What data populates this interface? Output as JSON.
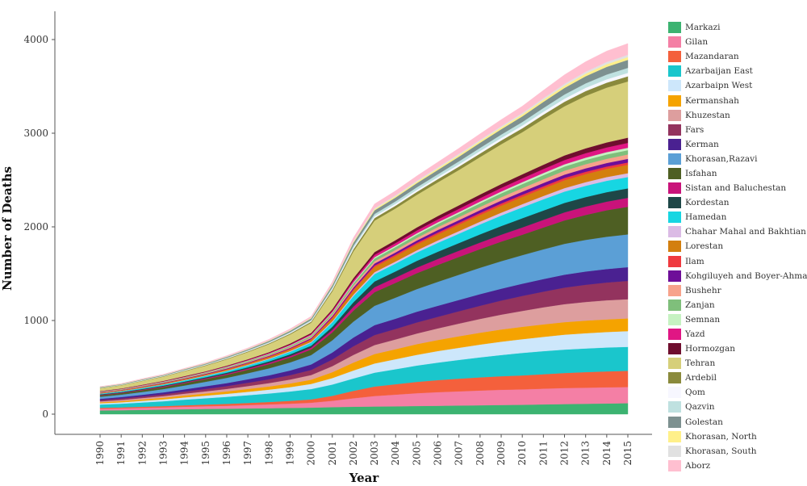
{
  "chart_data": {
    "type": "area",
    "stacked": true,
    "xlabel": "Year",
    "ylabel": "Number of Deaths",
    "xlim": [
      1990,
      2015
    ],
    "ylim": [
      0,
      4000
    ],
    "yticks": [
      0,
      1000,
      2000,
      3000,
      4000
    ],
    "x": [
      1990,
      1991,
      1992,
      1993,
      1994,
      1995,
      1996,
      1997,
      1998,
      1999,
      2000,
      2001,
      2002,
      2003,
      2004,
      2005,
      2006,
      2007,
      2008,
      2009,
      2010,
      2011,
      2012,
      2013,
      2014,
      2015
    ],
    "legend_position": "right",
    "grid": false,
    "series": [
      {
        "name": "Markazi",
        "color": "#3cb371",
        "values": [
          40,
          42,
          46,
          49,
          53,
          56,
          58,
          61,
          64,
          67,
          70,
          75,
          79,
          82,
          84,
          87,
          90,
          92,
          95,
          98,
          100,
          104,
          108,
          111,
          114,
          117
        ]
      },
      {
        "name": "Gilan",
        "color": "#f47fa5",
        "values": [
          18,
          19,
          21,
          23,
          26,
          29,
          32,
          36,
          40,
          45,
          52,
          68,
          91,
          112,
          125,
          137,
          145,
          152,
          158,
          162,
          165,
          168,
          171,
          172,
          173,
          173
        ]
      },
      {
        "name": "Mazandaran",
        "color": "#f4603c",
        "values": [
          10,
          11,
          12,
          14,
          16,
          18,
          20,
          23,
          26,
          30,
          36,
          53,
          79,
          101,
          111,
          121,
          129,
          135,
          140,
          145,
          149,
          155,
          161,
          166,
          170,
          173
        ]
      },
      {
        "name": "Azarbaijan East",
        "color": "#1ac6cc",
        "values": [
          35,
          40,
          46,
          52,
          60,
          67,
          75,
          83,
          91,
          100,
          110,
          120,
          132,
          148,
          160,
          174,
          187,
          200,
          214,
          227,
          240,
          246,
          250,
          253,
          255,
          256
        ]
      },
      {
        "name": "Azarbaipn West",
        "color": "#cde7fb",
        "values": [
          13,
          15,
          18,
          21,
          24,
          28,
          32,
          36,
          41,
          47,
          55,
          69,
          85,
          98,
          107,
          115,
          123,
          130,
          136,
          142,
          147,
          153,
          159,
          163,
          166,
          168
        ]
      },
      {
        "name": "Kermanshah",
        "color": "#f5a300",
        "values": [
          11,
          13,
          15,
          17,
          20,
          23,
          26,
          30,
          34,
          39,
          45,
          63,
          85,
          101,
          107,
          113,
          118,
          123,
          127,
          130,
          132,
          133,
          134,
          134,
          134,
          135
        ]
      },
      {
        "name": "Khuzestan",
        "color": "#dd9e9e",
        "values": [
          10,
          12,
          14,
          17,
          20,
          23,
          27,
          31,
          36,
          42,
          50,
          65,
          82,
          96,
          104,
          114,
          124,
          135,
          147,
          159,
          170,
          182,
          192,
          199,
          204,
          206
        ]
      },
      {
        "name": "Fars",
        "color": "#93335e",
        "values": [
          13,
          15,
          17,
          19,
          22,
          26,
          30,
          35,
          40,
          46,
          54,
          71,
          92,
          107,
          112,
          118,
          124,
          132,
          141,
          150,
          160,
          168,
          177,
          184,
          190,
          195
        ]
      },
      {
        "name": "Kerman",
        "color": "#4a2191",
        "values": [
          14,
          16,
          18,
          21,
          24,
          28,
          32,
          37,
          43,
          50,
          59,
          75,
          93,
          106,
          110,
          115,
          118,
          121,
          124,
          127,
          130,
          134,
          138,
          141,
          144,
          147
        ]
      },
      {
        "name": "Khorasan,Razavi",
        "color": "#5b9fd6",
        "values": [
          22,
          26,
          30,
          35,
          41,
          48,
          56,
          65,
          75,
          87,
          100,
          130,
          170,
          206,
          225,
          241,
          256,
          269,
          282,
          294,
          305,
          317,
          329,
          338,
          345,
          350
        ]
      },
      {
        "name": "Isfahan",
        "color": "#4e5f23",
        "values": [
          14,
          16,
          19,
          22,
          25,
          29,
          33,
          38,
          44,
          51,
          60,
          84,
          117,
          146,
          158,
          170,
          180,
          190,
          199,
          208,
          218,
          233,
          250,
          267,
          283,
          295
        ]
      },
      {
        "name": "Sistan and Baluchestan",
        "color": "#c9137a",
        "values": [
          5,
          5,
          6,
          7,
          8,
          9,
          10,
          12,
          14,
          16,
          19,
          28,
          42,
          53,
          56,
          60,
          64,
          67,
          70,
          74,
          78,
          82,
          86,
          89,
          92,
          95
        ]
      },
      {
        "name": "Kordestan",
        "color": "#1e4747",
        "values": [
          6,
          6,
          7,
          8,
          9,
          10,
          12,
          14,
          16,
          19,
          22,
          33,
          48,
          61,
          66,
          72,
          77,
          82,
          88,
          93,
          98,
          100,
          101,
          101,
          101,
          101
        ]
      },
      {
        "name": "Hamedan",
        "color": "#17d6e2",
        "values": [
          8,
          9,
          10,
          11,
          13,
          15,
          17,
          20,
          23,
          27,
          32,
          46,
          65,
          79,
          84,
          89,
          95,
          100,
          106,
          112,
          117,
          120,
          121,
          121,
          121,
          121
        ]
      },
      {
        "name": "Chahar Mahal and Bakhtian",
        "color": "#dbbbe5",
        "values": [
          2,
          2,
          3,
          3,
          4,
          4,
          5,
          6,
          7,
          8,
          9,
          12,
          16,
          20,
          21,
          23,
          25,
          27,
          29,
          31,
          33,
          35,
          37,
          39,
          40,
          41
        ]
      },
      {
        "name": "Lorestan",
        "color": "#d37f0f",
        "values": [
          6,
          7,
          8,
          9,
          10,
          11,
          13,
          15,
          17,
          20,
          23,
          32,
          45,
          55,
          58,
          62,
          66,
          69,
          72,
          75,
          78,
          81,
          84,
          86,
          88,
          90
        ]
      },
      {
        "name": "Ilam",
        "color": "#ef3a3f",
        "values": [
          2,
          2,
          2,
          3,
          3,
          3,
          4,
          4,
          5,
          6,
          7,
          10,
          13,
          16,
          17,
          18,
          19,
          20,
          21,
          22,
          23,
          23,
          24,
          24,
          24,
          25
        ]
      },
      {
        "name": "Kohgiluyeh and Boyer-Ahmad",
        "color": "#6e0e99",
        "values": [
          3,
          3,
          3,
          4,
          4,
          5,
          6,
          6,
          7,
          8,
          10,
          13,
          18,
          22,
          23,
          25,
          27,
          28,
          30,
          32,
          33,
          35,
          36,
          37,
          38,
          39
        ]
      },
      {
        "name": "Bushehr",
        "color": "#f7a28b",
        "values": [
          3,
          3,
          4,
          4,
          5,
          5,
          6,
          7,
          8,
          9,
          11,
          15,
          20,
          24,
          26,
          28,
          30,
          32,
          34,
          36,
          38,
          40,
          42,
          44,
          45,
          46
        ]
      },
      {
        "name": "Zanjan",
        "color": "#7fbf7b",
        "values": [
          4,
          4,
          5,
          5,
          6,
          7,
          8,
          9,
          10,
          12,
          14,
          18,
          24,
          29,
          31,
          33,
          35,
          37,
          39,
          41,
          43,
          44,
          45,
          46,
          46,
          46
        ]
      },
      {
        "name": "Semnan",
        "color": "#c6f2c2",
        "values": [
          2,
          2,
          2,
          3,
          3,
          3,
          4,
          4,
          5,
          6,
          7,
          9,
          12,
          14,
          15,
          16,
          17,
          18,
          19,
          20,
          21,
          22,
          23,
          24,
          25,
          26
        ]
      },
      {
        "name": "Yazd",
        "color": "#e01684",
        "values": [
          3,
          3,
          4,
          4,
          5,
          5,
          6,
          7,
          8,
          9,
          11,
          15,
          21,
          26,
          28,
          30,
          32,
          34,
          36,
          38,
          40,
          43,
          46,
          48,
          50,
          52
        ]
      },
      {
        "name": "Hormozgan",
        "color": "#6f0e2e",
        "values": [
          3,
          3,
          4,
          4,
          5,
          5,
          6,
          7,
          8,
          10,
          12,
          17,
          24,
          29,
          31,
          33,
          35,
          37,
          39,
          41,
          43,
          46,
          49,
          52,
          54,
          56
        ]
      },
      {
        "name": "Tehran",
        "color": "#d6cf7a",
        "values": [
          29,
          34,
          40,
          46,
          53,
          60,
          68,
          77,
          86,
          97,
          109,
          190,
          285,
          335,
          338,
          347,
          360,
          378,
          400,
          425,
          450,
          489,
          525,
          560,
          585,
          600
        ]
      },
      {
        "name": "Ardebil",
        "color": "#8a8a3c",
        "values": [
          3,
          3,
          4,
          4,
          5,
          6,
          6,
          7,
          8,
          9,
          11,
          16,
          23,
          28,
          30,
          32,
          34,
          36,
          38,
          40,
          42,
          45,
          48,
          51,
          53,
          55
        ]
      },
      {
        "name": "Qom",
        "color": "#f7f7ff",
        "values": [
          2,
          2,
          3,
          3,
          4,
          4,
          5,
          5,
          6,
          7,
          8,
          12,
          16,
          19,
          20,
          21,
          22,
          24,
          26,
          27,
          29,
          31,
          33,
          35,
          36,
          37
        ]
      },
      {
        "name": "Qazvin",
        "color": "#bfe1e0",
        "values": [
          3,
          3,
          4,
          4,
          5,
          5,
          6,
          7,
          8,
          9,
          10,
          15,
          21,
          25,
          26,
          28,
          30,
          32,
          34,
          36,
          38,
          41,
          45,
          48,
          51,
          53
        ]
      },
      {
        "name": "Golestan",
        "color": "#7d9190",
        "values": [
          5,
          5,
          6,
          6,
          7,
          8,
          9,
          10,
          12,
          14,
          16,
          23,
          32,
          39,
          41,
          44,
          47,
          50,
          54,
          57,
          60,
          65,
          70,
          76,
          82,
          86
        ]
      },
      {
        "name": "Khorasan, North",
        "color": "#fff08a",
        "values": [
          2,
          2,
          2,
          2,
          3,
          3,
          3,
          4,
          4,
          5,
          6,
          8,
          11,
          13,
          14,
          15,
          16,
          17,
          18,
          19,
          20,
          22,
          24,
          26,
          28,
          29
        ]
      },
      {
        "name": "Khorasan, South",
        "color": "#e1e1e1",
        "values": [
          1,
          1,
          2,
          2,
          2,
          2,
          3,
          3,
          3,
          4,
          4,
          6,
          9,
          11,
          11,
          12,
          13,
          14,
          14,
          15,
          16,
          18,
          20,
          22,
          24,
          25
        ]
      },
      {
        "name": "Aborz",
        "color": "#ffbfd0",
        "values": [
          3,
          3,
          4,
          5,
          5,
          6,
          7,
          8,
          10,
          11,
          13,
          22,
          34,
          44,
          46,
          50,
          54,
          59,
          64,
          69,
          73,
          84,
          96,
          107,
          117,
          120
        ]
      }
    ]
  }
}
